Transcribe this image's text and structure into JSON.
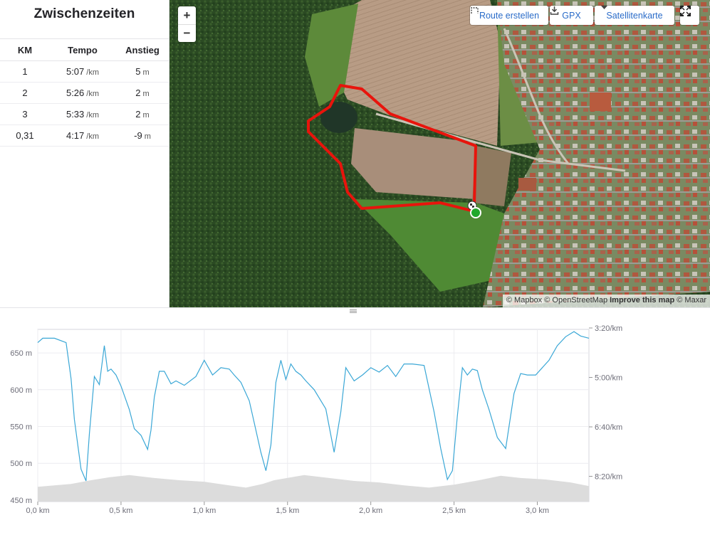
{
  "splits": {
    "title": "Zwischenzeiten",
    "headers": [
      "KM",
      "Tempo",
      "Anstieg"
    ],
    "rows": [
      {
        "km": "1",
        "pace": "5:07",
        "pace_unit": "/km",
        "elev": "5",
        "elev_unit": "m"
      },
      {
        "km": "2",
        "pace": "5:26",
        "pace_unit": "/km",
        "elev": "2",
        "elev_unit": "m"
      },
      {
        "km": "3",
        "pace": "5:33",
        "pace_unit": "/km",
        "elev": "2",
        "elev_unit": "m"
      },
      {
        "km": "0,31",
        "pace": "4:17",
        "pace_unit": "/km",
        "elev": "-9",
        "elev_unit": "m"
      }
    ]
  },
  "map": {
    "zoom_in_label": "+",
    "zoom_out_label": "−",
    "route_button_label": "Route erstellen",
    "gpx_button_label": "GPX",
    "map_type_label": "Satellitenkarte",
    "attribution_prefix": "© Mapbox © OpenStreetMap",
    "attribution_improve": "Improve this map",
    "attribution_suffix": "© Maxar",
    "route_color": "#e8140c",
    "start_marker_color": "#21a82b"
  },
  "chart_data": {
    "type": "line",
    "x_unit": "km",
    "x_ticks": [
      "0,0 km",
      "0,5 km",
      "1,0 km",
      "1,5 km",
      "2,0 km",
      "2,5 km",
      "3,0 km"
    ],
    "xlim": [
      0,
      3.31
    ],
    "y_left_ticks": [
      "650 m",
      "600 m",
      "550 m",
      "500 m",
      "450 m"
    ],
    "y_right_ticks": [
      "3:20/km",
      "5:00/km",
      "6:40/km",
      "8:20/km"
    ],
    "series": [
      {
        "role": "pace",
        "color": "#3aa7d6",
        "x": [
          0,
          0.03,
          0.1,
          0.17,
          0.2,
          0.22,
          0.26,
          0.29,
          0.31,
          0.34,
          0.37,
          0.4,
          0.42,
          0.44,
          0.47,
          0.5,
          0.55,
          0.58,
          0.62,
          0.66,
          0.68,
          0.7,
          0.73,
          0.76,
          0.8,
          0.83,
          0.88,
          0.95,
          1.0,
          1.05,
          1.1,
          1.15,
          1.18,
          1.22,
          1.27,
          1.3,
          1.34,
          1.37,
          1.4,
          1.43,
          1.46,
          1.49,
          1.52,
          1.55,
          1.58,
          1.61,
          1.66,
          1.73,
          1.78,
          1.82,
          1.85,
          1.9,
          1.95,
          2.0,
          2.05,
          2.1,
          2.15,
          2.2,
          2.25,
          2.32,
          2.38,
          2.42,
          2.46,
          2.49,
          2.52,
          2.55,
          2.58,
          2.61,
          2.64,
          2.67,
          2.71,
          2.76,
          2.81,
          2.86,
          2.9,
          2.94,
          2.99,
          3.03,
          3.07,
          3.12,
          3.17,
          3.22,
          3.26,
          3.31
        ],
        "y": [
          664,
          670,
          670,
          664,
          615,
          560,
          492,
          476,
          540,
          618,
          607,
          660,
          625,
          628,
          620,
          605,
          573,
          547,
          538,
          519,
          545,
          590,
          625,
          625,
          608,
          612,
          606,
          618,
          640,
          620,
          630,
          628,
          620,
          610,
          585,
          555,
          515,
          490,
          525,
          610,
          640,
          614,
          635,
          625,
          620,
          612,
          600,
          574,
          515,
          570,
          630,
          612,
          620,
          630,
          624,
          633,
          618,
          635,
          635,
          633,
          570,
          520,
          478,
          490,
          565,
          630,
          620,
          628,
          626,
          600,
          573,
          535,
          520,
          595,
          622,
          620,
          620,
          630,
          640,
          660,
          672,
          679,
          673,
          670
        ]
      },
      {
        "role": "elevation",
        "color": "#dcdcdc",
        "x": [
          0,
          0.2,
          0.32,
          0.43,
          0.55,
          0.7,
          0.85,
          1.0,
          1.15,
          1.25,
          1.35,
          1.42,
          1.6,
          1.75,
          1.9,
          2.05,
          2.2,
          2.35,
          2.5,
          2.65,
          2.78,
          2.9,
          3.05,
          3.2,
          3.31
        ],
        "y": [
          468,
          472,
          477,
          481,
          484,
          480,
          477,
          475,
          470,
          467,
          472,
          477,
          484,
          480,
          476,
          474,
          470,
          467,
          471,
          477,
          483,
          480,
          478,
          474,
          469
        ]
      }
    ],
    "ylim": [
      448,
      682
    ],
    "grid": true
  }
}
